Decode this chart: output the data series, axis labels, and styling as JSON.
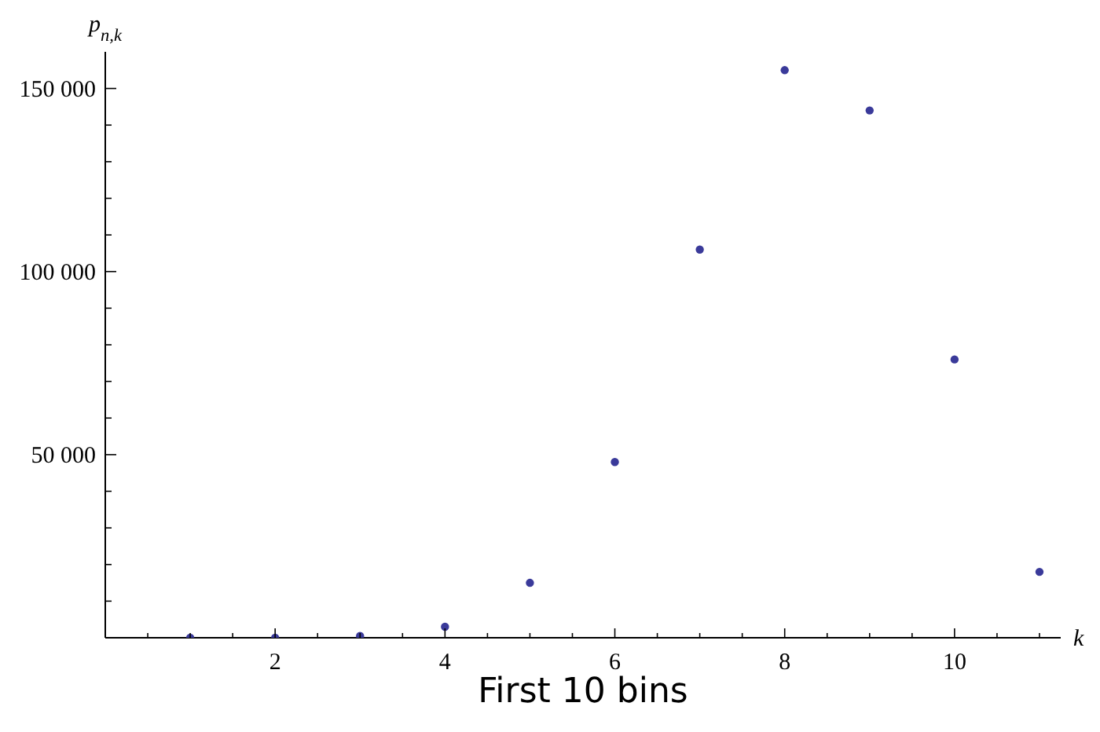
{
  "chart_data": {
    "type": "scatter",
    "title": "First 10 bins",
    "xlabel": "k",
    "ylabel": "p$_{n,k}$",
    "x": [
      1,
      2,
      3,
      4,
      5,
      6,
      7,
      8,
      9,
      10,
      11
    ],
    "series": [
      {
        "color": "#3a3a9a",
        "values": [
          0,
          0,
          500,
          3000,
          15000,
          48000,
          106000,
          155000,
          144000,
          76000,
          18000
        ]
      }
    ],
    "marker": "circle",
    "xlim": [
      0,
      11.25
    ],
    "ylim": [
      0,
      160000
    ],
    "xticks": [
      {
        "value": 0.5,
        "label": null
      },
      {
        "value": 1,
        "label": null
      },
      {
        "value": 1.5,
        "label": null
      },
      2,
      {
        "value": 2.5,
        "label": null
      },
      {
        "value": 3,
        "label": null
      },
      {
        "value": 3.5,
        "label": null
      },
      4,
      {
        "value": 4.5,
        "label": null
      },
      {
        "value": 5,
        "label": null
      },
      {
        "value": 5.5,
        "label": null
      },
      6,
      {
        "value": 6.5,
        "label": null
      },
      {
        "value": 7,
        "label": null
      },
      {
        "value": 7.5,
        "label": null
      },
      8,
      {
        "value": 8.5,
        "label": null
      },
      {
        "value": 9,
        "label": null
      },
      {
        "value": 9.5,
        "label": null
      },
      10,
      {
        "value": 10.5,
        "label": null
      },
      {
        "value": 11,
        "label": null
      }
    ],
    "yticks": [
      {
        "value": 10000,
        "label": null
      },
      {
        "value": 20000,
        "label": null
      },
      {
        "value": 30000,
        "label": null
      },
      {
        "value": 40000,
        "label": null
      },
      {
        "value": 50000,
        "label": "50 000"
      },
      {
        "value": 60000,
        "label": null
      },
      {
        "value": 70000,
        "label": null
      },
      {
        "value": 80000,
        "label": null
      },
      {
        "value": 90000,
        "label": null
      },
      {
        "value": 100000,
        "label": "100 000"
      },
      {
        "value": 110000,
        "label": null
      },
      {
        "value": 120000,
        "label": null
      },
      {
        "value": 130000,
        "label": null
      },
      {
        "value": 140000,
        "label": null
      },
      {
        "value": 150000,
        "label": "150 000"
      }
    ]
  }
}
